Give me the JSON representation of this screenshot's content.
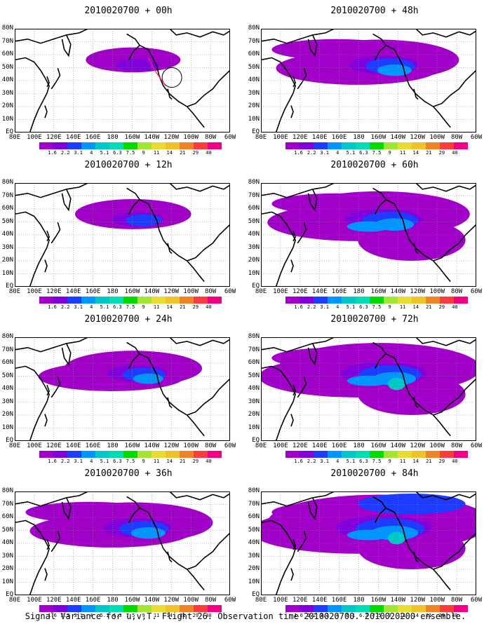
{
  "panels": [
    {
      "title": "2010020700 + 00h",
      "lead": 0,
      "level": 0
    },
    {
      "title": "2010020700 + 48h",
      "lead": 48,
      "level": 3
    },
    {
      "title": "2010020700 + 12h",
      "lead": 12,
      "level": 1
    },
    {
      "title": "2010020700 + 60h",
      "lead": 60,
      "level": 4
    },
    {
      "title": "2010020700 + 24h",
      "lead": 24,
      "level": 2
    },
    {
      "title": "2010020700 + 72h",
      "lead": 72,
      "level": 5
    },
    {
      "title": "2010020700 + 36h",
      "lead": 36,
      "level": 3
    },
    {
      "title": "2010020700 + 84h",
      "lead": 84,
      "level": 6
    }
  ],
  "x_ticks": [
    "80E",
    "100E",
    "120E",
    "140E",
    "160E",
    "180",
    "160W",
    "140W",
    "120W",
    "100W",
    "80W",
    "60W"
  ],
  "y_ticks": [
    "80N",
    "70N",
    "60N",
    "50N",
    "40N",
    "30N",
    "20N",
    "10N",
    "EQ"
  ],
  "colorbar": {
    "labels": [
      "1.6",
      "2.2",
      "3.1",
      "4",
      "5.1",
      "6.3",
      "7.5",
      "9",
      "11",
      "14",
      "21",
      "29",
      "40"
    ],
    "colors": [
      "#a000c8",
      "#8200dc",
      "#1e3cff",
      "#0096ff",
      "#00c8c8",
      "#00dcb4",
      "#00dc00",
      "#a0e632",
      "#e6dc32",
      "#f0c22a",
      "#f08228",
      "#fa3c3c",
      "#f00082"
    ]
  },
  "footer": "Signal Variance for u,v,T. Flight 26. Observation time 2010020700. 2010020200 ensemble."
}
